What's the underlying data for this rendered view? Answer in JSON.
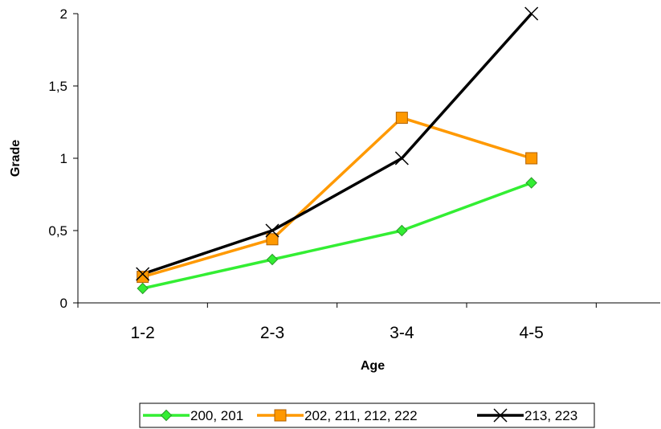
{
  "chart_data": {
    "type": "line",
    "title": "",
    "xlabel": "Age",
    "ylabel": "Grade",
    "categories": [
      "1-2",
      "2-3",
      "3-4",
      "4-5"
    ],
    "ylim": [
      0,
      2
    ],
    "yticks": [
      0,
      0.5,
      1,
      1.5,
      2
    ],
    "ytick_labels": [
      "0",
      "0,5",
      "1",
      "1,5",
      "2"
    ],
    "grid": false,
    "legend_position": "bottom",
    "series": [
      {
        "name": "200, 201",
        "values": [
          0.1,
          0.3,
          0.5,
          0.83
        ],
        "color": "#33ee33",
        "marker": "diamond"
      },
      {
        "name": "202, 211, 212, 222",
        "values": [
          0.18,
          0.44,
          1.28,
          1.0
        ],
        "color": "#ff9900",
        "marker": "square"
      },
      {
        "name": "213, 223",
        "values": [
          0.2,
          0.5,
          1.0,
          2.0
        ],
        "color": "#000000",
        "marker": "x"
      }
    ]
  }
}
